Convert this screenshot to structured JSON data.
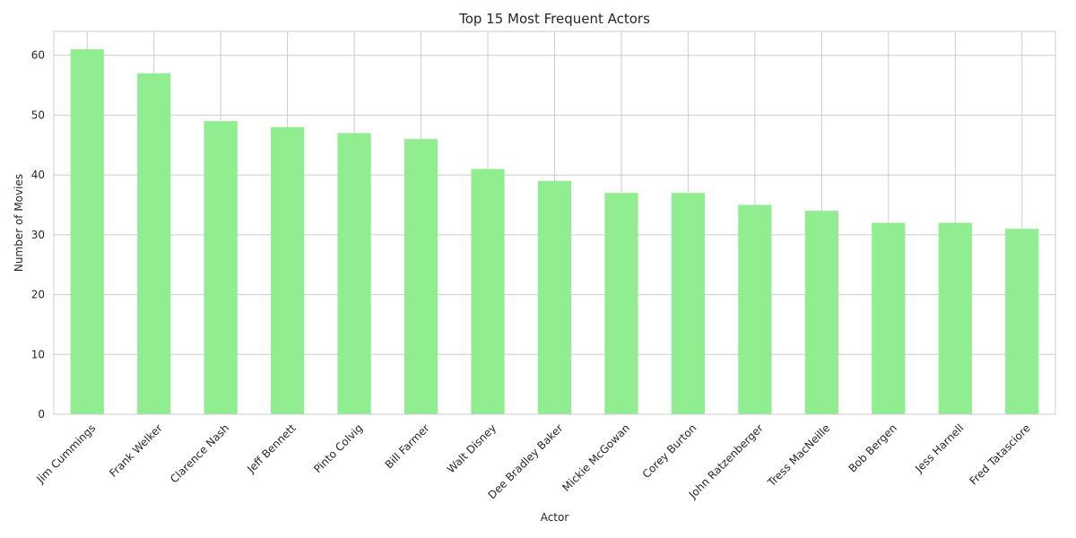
{
  "chart_data": {
    "type": "bar",
    "title": "Top 15 Most Frequent Actors",
    "xlabel": "Actor",
    "ylabel": "Number of Movies",
    "categories": [
      "Jim Cummings",
      "Frank Welker",
      "Clarence Nash",
      "Jeff Bennett",
      "Pinto Colvig",
      "Bill Farmer",
      "Walt Disney",
      "Dee Bradley Baker",
      "Mickie McGowan",
      "Corey Burton",
      "John Ratzenberger",
      "Tress MacNeille",
      "Bob Bergen",
      "Jess Harnell",
      "Fred Tatasciore"
    ],
    "values": [
      61,
      57,
      49,
      48,
      47,
      46,
      41,
      39,
      37,
      37,
      35,
      34,
      32,
      32,
      31
    ],
    "ylim": [
      0,
      64
    ],
    "yticks": [
      "0",
      "10",
      "20",
      "30",
      "40",
      "50",
      "60"
    ],
    "grid": true,
    "bar_color": "#90ee90",
    "grid_color": "#cccccc"
  }
}
